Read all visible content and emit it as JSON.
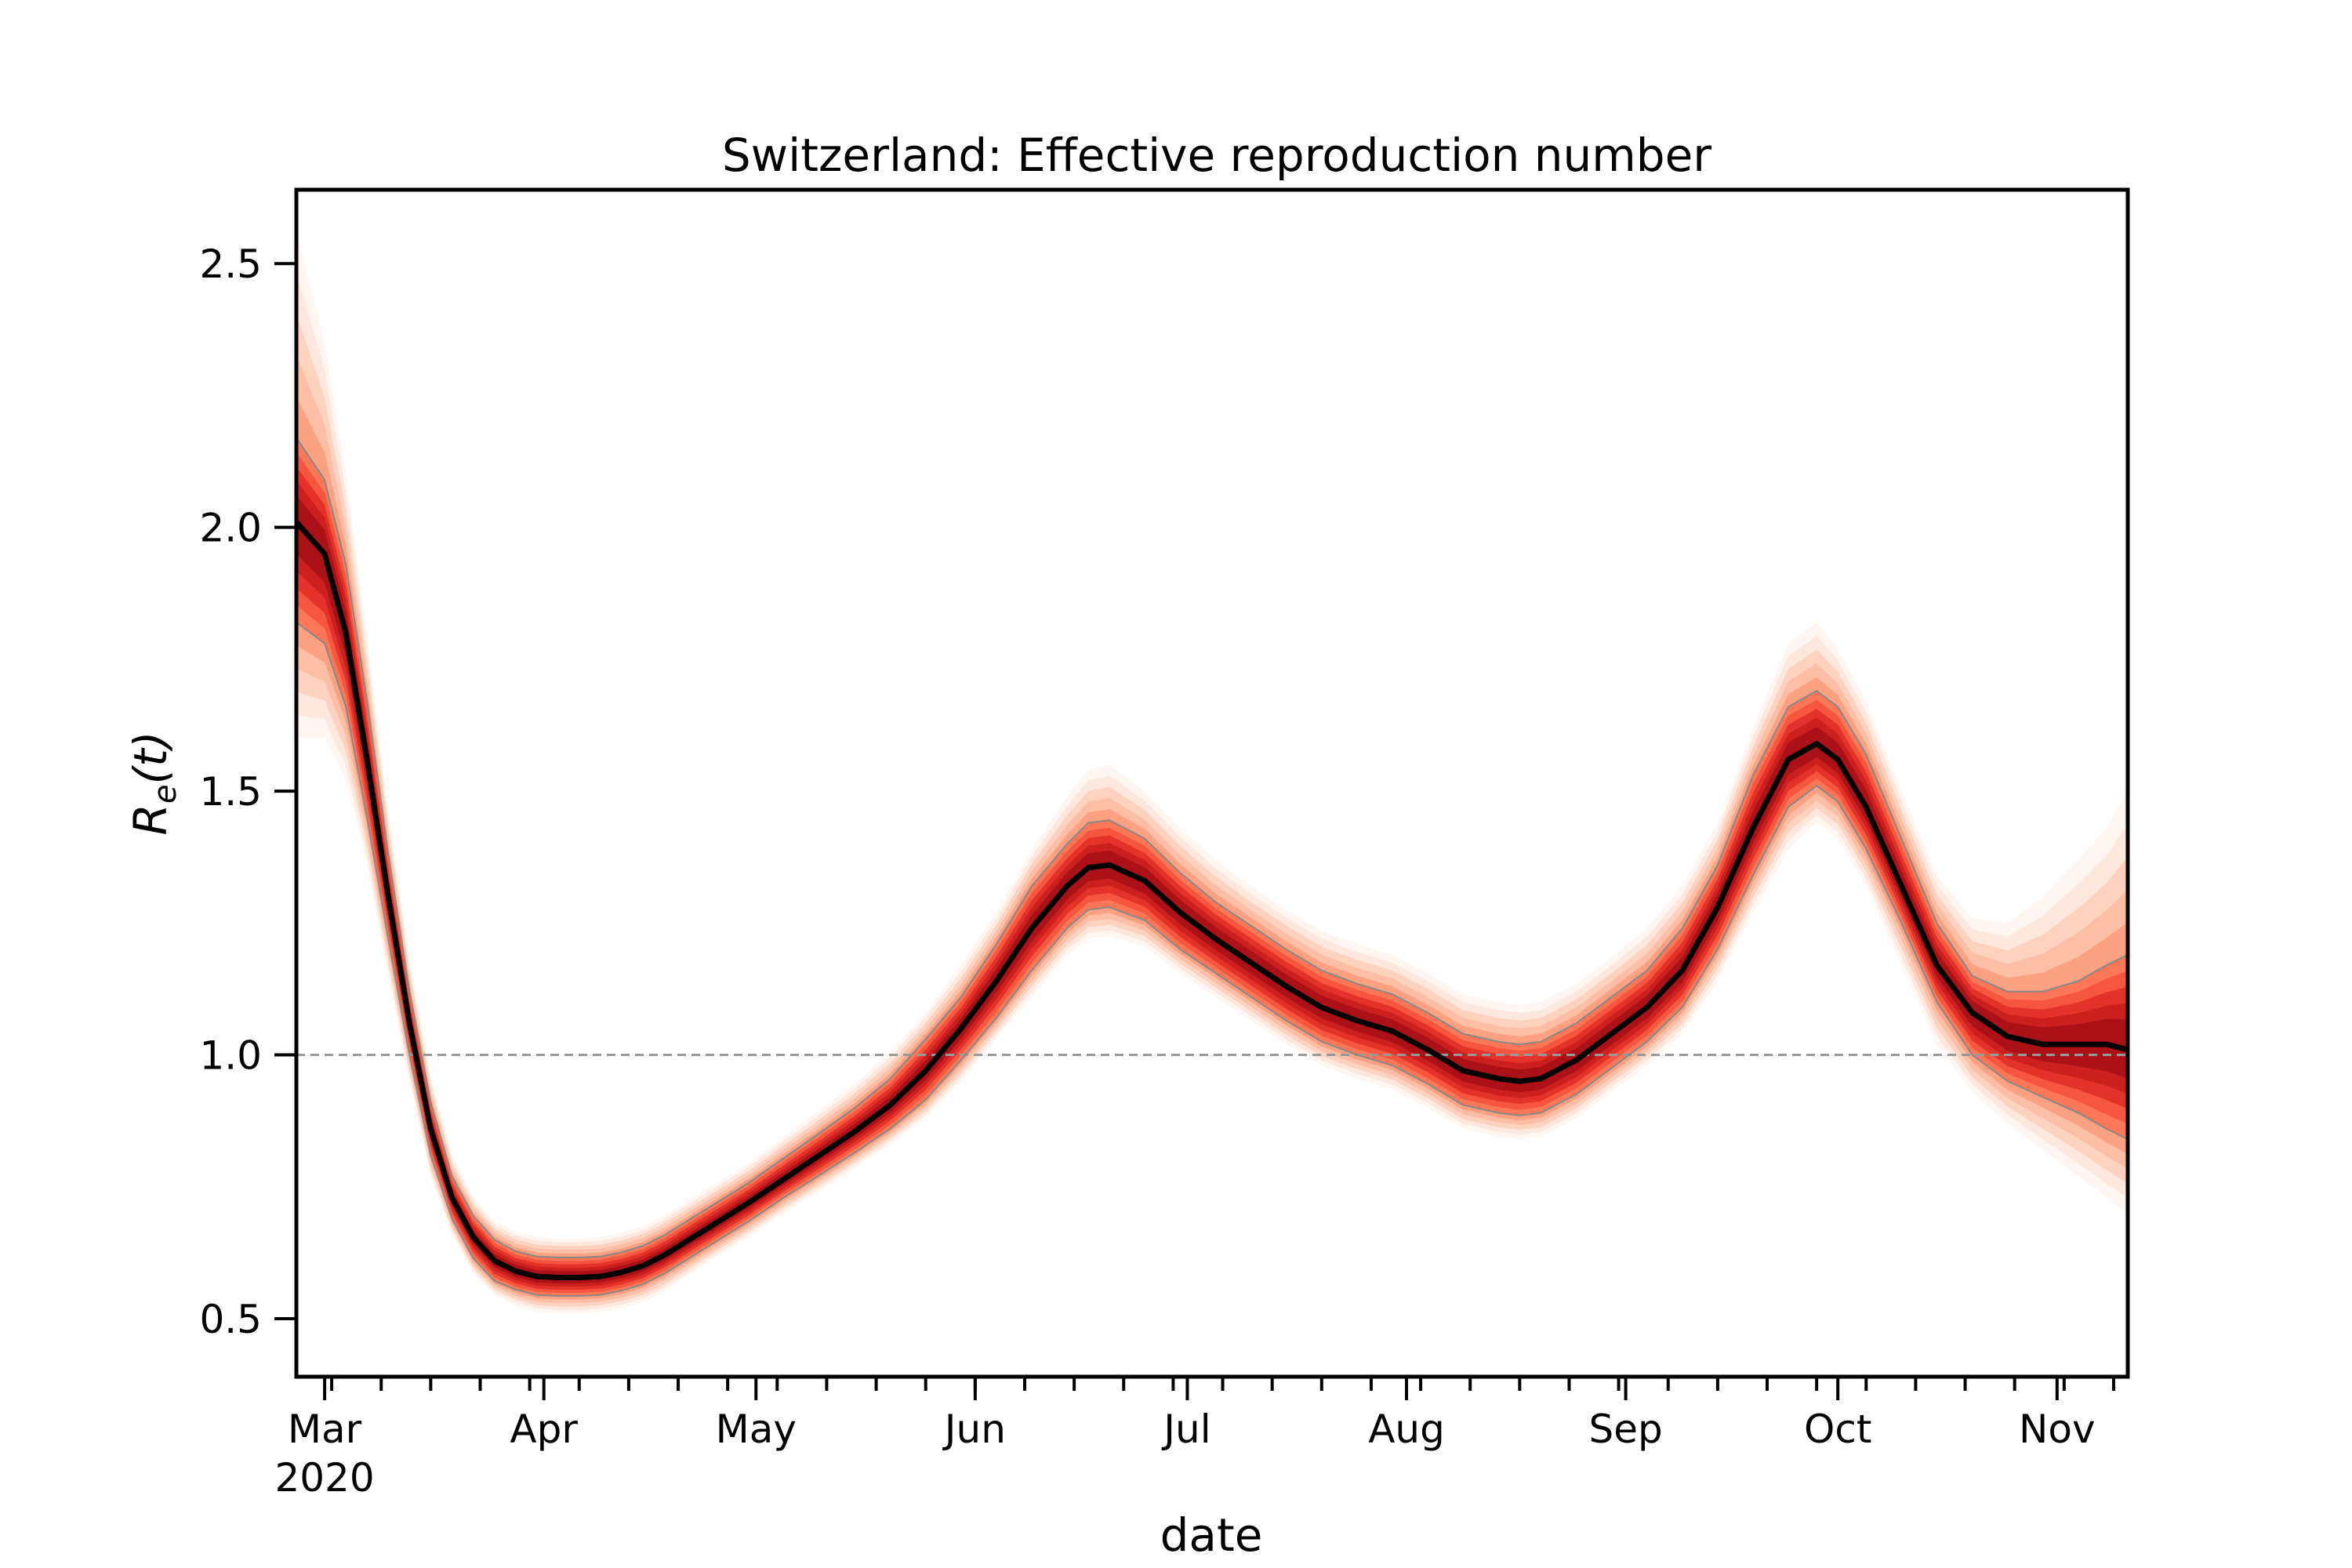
{
  "chart_data": {
    "type": "line",
    "title": "Switzerland: Effective reproduction number",
    "xlabel": "date",
    "ylabel": "R_e(t)",
    "ylabel_parts": {
      "main": "R",
      "subscript": "e",
      "suffix": "(t)"
    },
    "x_tick_labels": [
      "Mar",
      "Apr",
      "May",
      "Jun",
      "Jul",
      "Aug",
      "Sep",
      "Oct",
      "Nov"
    ],
    "x_year_label": "2020",
    "x_tick_dates": [
      "2020-03-01",
      "2020-04-01",
      "2020-05-01",
      "2020-06-01",
      "2020-07-01",
      "2020-08-01",
      "2020-09-01",
      "2020-10-01",
      "2020-11-01"
    ],
    "xlim": [
      "2020-02-26",
      "2020-11-11"
    ],
    "y_ticks": [
      0.5,
      1.0,
      1.5,
      2.0,
      2.5
    ],
    "y_tick_labels": [
      "0.5",
      "1.0",
      "1.5",
      "2.0",
      "2.5"
    ],
    "ylim": [
      0.39,
      2.64
    ],
    "reference_line": {
      "y": 1.0,
      "style": "dashed",
      "color": "#999999"
    },
    "grid": false,
    "legend": "none",
    "colors": {
      "median": "#000000",
      "band": "#de2d26",
      "band_light": "#fee5d9",
      "quantile_lines": "#888888",
      "axes": "#000000"
    },
    "series": [
      {
        "x": [
          "2020-02-26",
          "2020-03-01",
          "2020-03-04",
          "2020-03-07",
          "2020-03-10",
          "2020-03-13",
          "2020-03-16",
          "2020-03-19",
          "2020-03-22",
          "2020-03-25",
          "2020-03-28",
          "2020-03-31",
          "2020-04-03",
          "2020-04-06",
          "2020-04-09",
          "2020-04-12",
          "2020-04-15",
          "2020-04-18",
          "2020-04-21",
          "2020-04-24",
          "2020-04-27",
          "2020-04-30",
          "2020-05-05",
          "2020-05-10",
          "2020-05-15",
          "2020-05-20",
          "2020-05-25",
          "2020-05-30",
          "2020-06-04",
          "2020-06-09",
          "2020-06-14",
          "2020-06-17",
          "2020-06-20",
          "2020-06-25",
          "2020-06-30",
          "2020-07-05",
          "2020-07-10",
          "2020-07-15",
          "2020-07-20",
          "2020-07-25",
          "2020-07-30",
          "2020-08-04",
          "2020-08-09",
          "2020-08-14",
          "2020-08-17",
          "2020-08-20",
          "2020-08-25",
          "2020-08-30",
          "2020-09-04",
          "2020-09-09",
          "2020-09-14",
          "2020-09-19",
          "2020-09-24",
          "2020-09-28",
          "2020-10-01",
          "2020-10-05",
          "2020-10-10",
          "2020-10-15",
          "2020-10-20",
          "2020-10-25",
          "2020-10-30",
          "2020-11-04",
          "2020-11-08",
          "2020-11-11"
        ],
        "median": [
          2.01,
          1.95,
          1.8,
          1.56,
          1.3,
          1.06,
          0.86,
          0.73,
          0.655,
          0.61,
          0.59,
          0.58,
          0.578,
          0.578,
          0.58,
          0.588,
          0.6,
          0.62,
          0.645,
          0.67,
          0.695,
          0.72,
          0.765,
          0.81,
          0.855,
          0.905,
          0.97,
          1.05,
          1.14,
          1.24,
          1.32,
          1.355,
          1.36,
          1.33,
          1.27,
          1.22,
          1.175,
          1.13,
          1.09,
          1.065,
          1.045,
          1.01,
          0.97,
          0.955,
          0.95,
          0.955,
          0.99,
          1.04,
          1.09,
          1.16,
          1.28,
          1.43,
          1.56,
          1.59,
          1.56,
          1.47,
          1.32,
          1.17,
          1.08,
          1.035,
          1.02,
          1.02,
          1.02,
          1.01
        ],
        "inner_lower": [
          1.93,
          1.88,
          1.74,
          1.51,
          1.27,
          1.04,
          0.84,
          0.71,
          0.635,
          0.59,
          0.57,
          0.56,
          0.558,
          0.558,
          0.56,
          0.568,
          0.58,
          0.6,
          0.625,
          0.65,
          0.675,
          0.7,
          0.745,
          0.79,
          0.835,
          0.88,
          0.94,
          1.02,
          1.11,
          1.2,
          1.28,
          1.31,
          1.315,
          1.29,
          1.23,
          1.185,
          1.14,
          1.095,
          1.055,
          1.03,
          1.01,
          0.975,
          0.935,
          0.92,
          0.915,
          0.92,
          0.955,
          1.005,
          1.055,
          1.12,
          1.24,
          1.38,
          1.51,
          1.54,
          1.51,
          1.42,
          1.28,
          1.14,
          1.05,
          1.0,
          0.98,
          0.97,
          0.96,
          0.95
        ],
        "inner_upper": [
          2.09,
          2.02,
          1.86,
          1.61,
          1.33,
          1.08,
          0.88,
          0.75,
          0.675,
          0.63,
          0.61,
          0.6,
          0.598,
          0.598,
          0.6,
          0.608,
          0.62,
          0.64,
          0.665,
          0.69,
          0.715,
          0.74,
          0.785,
          0.83,
          0.875,
          0.93,
          1.0,
          1.08,
          1.17,
          1.28,
          1.36,
          1.4,
          1.405,
          1.37,
          1.31,
          1.255,
          1.21,
          1.165,
          1.125,
          1.1,
          1.08,
          1.045,
          1.005,
          0.99,
          0.985,
          0.99,
          1.025,
          1.075,
          1.125,
          1.2,
          1.32,
          1.48,
          1.61,
          1.64,
          1.61,
          1.52,
          1.36,
          1.2,
          1.11,
          1.07,
          1.06,
          1.07,
          1.08,
          1.08
        ],
        "quantile_lower": [
          1.82,
          1.78,
          1.66,
          1.45,
          1.22,
          1.0,
          0.81,
          0.69,
          0.615,
          0.572,
          0.555,
          0.545,
          0.543,
          0.543,
          0.545,
          0.553,
          0.565,
          0.585,
          0.61,
          0.635,
          0.66,
          0.685,
          0.73,
          0.772,
          0.815,
          0.86,
          0.915,
          0.99,
          1.07,
          1.16,
          1.24,
          1.275,
          1.28,
          1.255,
          1.2,
          1.155,
          1.11,
          1.065,
          1.025,
          1.0,
          0.98,
          0.945,
          0.905,
          0.89,
          0.885,
          0.89,
          0.925,
          0.975,
          1.025,
          1.09,
          1.2,
          1.34,
          1.47,
          1.51,
          1.48,
          1.39,
          1.25,
          1.1,
          1.0,
          0.95,
          0.92,
          0.89,
          0.86,
          0.84
        ],
        "quantile_upper": [
          2.17,
          2.09,
          1.93,
          1.67,
          1.38,
          1.12,
          0.91,
          0.77,
          0.695,
          0.65,
          0.628,
          0.618,
          0.616,
          0.616,
          0.618,
          0.626,
          0.638,
          0.658,
          0.683,
          0.708,
          0.733,
          0.758,
          0.805,
          0.852,
          0.9,
          0.955,
          1.03,
          1.11,
          1.21,
          1.32,
          1.4,
          1.44,
          1.445,
          1.41,
          1.345,
          1.29,
          1.245,
          1.2,
          1.16,
          1.135,
          1.115,
          1.08,
          1.04,
          1.025,
          1.02,
          1.025,
          1.06,
          1.11,
          1.16,
          1.24,
          1.36,
          1.53,
          1.66,
          1.69,
          1.66,
          1.57,
          1.41,
          1.25,
          1.15,
          1.12,
          1.12,
          1.14,
          1.17,
          1.19
        ],
        "outer_lower": [
          1.6,
          1.6,
          1.52,
          1.36,
          1.15,
          0.95,
          0.77,
          0.66,
          0.585,
          0.545,
          0.525,
          0.513,
          0.51,
          0.51,
          0.513,
          0.52,
          0.532,
          0.552,
          0.578,
          0.605,
          0.63,
          0.655,
          0.7,
          0.742,
          0.785,
          0.83,
          0.88,
          0.95,
          1.03,
          1.11,
          1.19,
          1.22,
          1.225,
          1.205,
          1.155,
          1.11,
          1.065,
          1.02,
          0.98,
          0.955,
          0.935,
          0.9,
          0.86,
          0.845,
          0.84,
          0.845,
          0.88,
          0.93,
          0.98,
          1.04,
          1.14,
          1.27,
          1.39,
          1.44,
          1.41,
          1.32,
          1.17,
          1.02,
          0.93,
          0.87,
          0.82,
          0.77,
          0.73,
          0.7
        ],
        "outer_upper": [
          2.56,
          2.35,
          2.1,
          1.79,
          1.46,
          1.18,
          0.96,
          0.81,
          0.73,
          0.685,
          0.665,
          0.655,
          0.652,
          0.652,
          0.655,
          0.663,
          0.675,
          0.695,
          0.72,
          0.745,
          0.77,
          0.795,
          0.845,
          0.895,
          0.945,
          1.005,
          1.08,
          1.17,
          1.27,
          1.39,
          1.49,
          1.54,
          1.55,
          1.5,
          1.43,
          1.37,
          1.32,
          1.275,
          1.235,
          1.21,
          1.19,
          1.155,
          1.115,
          1.1,
          1.095,
          1.1,
          1.135,
          1.185,
          1.24,
          1.32,
          1.44,
          1.62,
          1.78,
          1.82,
          1.77,
          1.67,
          1.5,
          1.34,
          1.26,
          1.25,
          1.3,
          1.37,
          1.43,
          1.5
        ]
      }
    ]
  }
}
